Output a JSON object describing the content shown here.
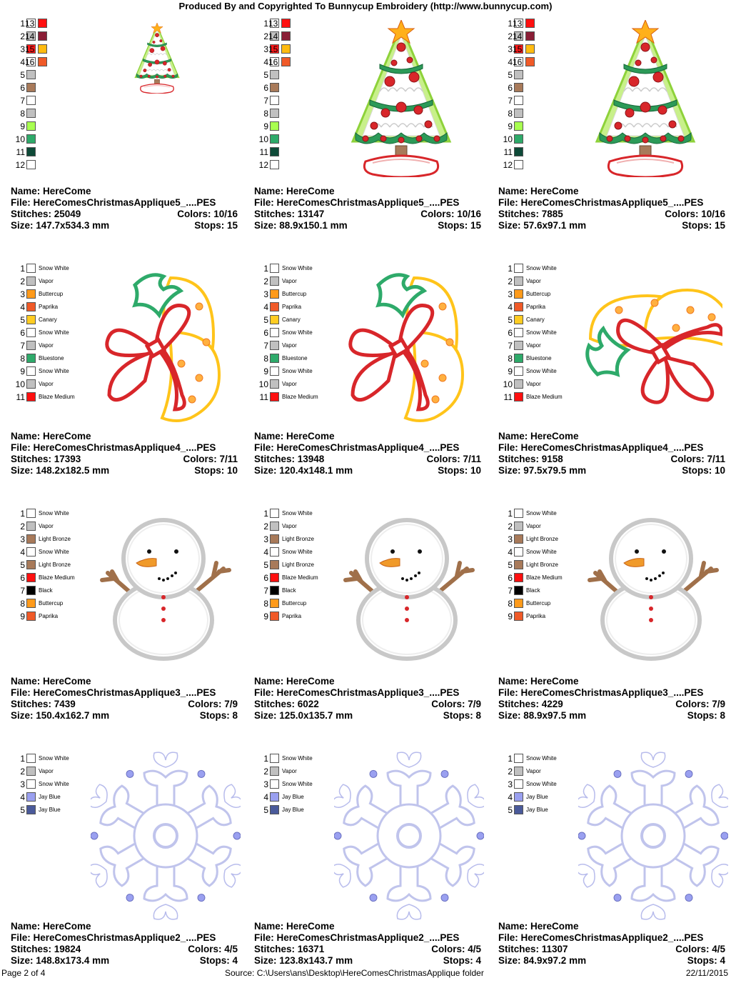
{
  "header": "Produced By and Copyrighted To Bunnycup Embroidery (http://www.bunnycup.com)",
  "footer": {
    "page": "Page 2 of 4",
    "source": "Source: C:\\Users\\ans\\Desktop\\HereComesChristmasApplique folder",
    "date": "22/11/2015"
  },
  "rows": [
    {
      "artwork": "christmas-tree",
      "swatch_style": "numbered-two-column",
      "swatches": [
        {
          "n": "1",
          "color": "#ffffff"
        },
        {
          "n": "2",
          "color": "#c0c0c0"
        },
        {
          "n": "3",
          "color": "#ff1a1a"
        },
        {
          "n": "4",
          "color": "#ffffff"
        },
        {
          "n": "5",
          "color": "#c0c0c0"
        },
        {
          "n": "6",
          "color": "#a87a5a"
        },
        {
          "n": "7",
          "color": "#ffffff"
        },
        {
          "n": "8",
          "color": "#c0c0c0"
        },
        {
          "n": "9",
          "color": "#a8ff50"
        },
        {
          "n": "10",
          "color": "#2eaa6a"
        },
        {
          "n": "11",
          "color": "#0e4a38"
        },
        {
          "n": "12",
          "color": "#ffffff"
        },
        {
          "n": "13",
          "color": "#ff1010"
        },
        {
          "n": "14",
          "color": "#8a1e36"
        },
        {
          "n": "15",
          "color": "#ffbb10"
        },
        {
          "n": "16",
          "color": "#f05a28"
        }
      ],
      "cells": [
        {
          "name": "Name: HereCome",
          "file": "File: HereComesChristmasApplique5_....PES",
          "stitches": "Stitches: 25049",
          "colors": "Colors: 10/16",
          "size": "Size: 147.7x534.3 mm",
          "stops": "Stops: 15",
          "scale": 0.45
        },
        {
          "name": "Name: HereCome",
          "file": "File: HereComesChristmasApplique5_....PES",
          "stitches": "Stitches: 13147",
          "colors": "Colors: 10/16",
          "size": "Size: 88.9x150.1 mm",
          "stops": "Stops: 15",
          "scale": 1
        },
        {
          "name": "Name: HereCome",
          "file": "File: HereComesChristmasApplique5_....PES",
          "stitches": "Stitches: 7885",
          "colors": "Colors: 10/16",
          "size": "Size: 57.6x97.1 mm",
          "stops": "Stops: 15",
          "scale": 1
        }
      ]
    },
    {
      "artwork": "bells",
      "swatch_style": "named",
      "swatches": [
        {
          "n": "1",
          "color": "#ffffff",
          "name": "Snow White"
        },
        {
          "n": "2",
          "color": "#c0c0c0",
          "name": "Vapor"
        },
        {
          "n": "3",
          "color": "#ff9a1a",
          "name": "Buttercup"
        },
        {
          "n": "4",
          "color": "#f05a28",
          "name": "Paprika"
        },
        {
          "n": "5",
          "color": "#ffcc22",
          "name": "Canary"
        },
        {
          "n": "6",
          "color": "#ffffff",
          "name": "Snow White"
        },
        {
          "n": "7",
          "color": "#c0c0c0",
          "name": "Vapor"
        },
        {
          "n": "8",
          "color": "#2eaa6a",
          "name": "Bluestone"
        },
        {
          "n": "9",
          "color": "#ffffff",
          "name": "Snow White"
        },
        {
          "n": "10",
          "color": "#c0c0c0",
          "name": "Vapor"
        },
        {
          "n": "11",
          "color": "#ff1010",
          "name": "Blaze Medium"
        }
      ],
      "cells": [
        {
          "name": "Name: HereCome",
          "file": "File: HereComesChristmasApplique4_....PES",
          "stitches": "Stitches: 17393",
          "colors": "Colors: 7/11",
          "size": "Size: 148.2x182.5 mm",
          "stops": "Stops: 10",
          "variant": "upright"
        },
        {
          "name": "Name: HereCome",
          "file": "File: HereComesChristmasApplique4_....PES",
          "stitches": "Stitches: 13948",
          "colors": "Colors: 7/11",
          "size": "Size: 120.4x148.1 mm",
          "stops": "Stops: 10",
          "variant": "upright"
        },
        {
          "name": "Name: HereCome",
          "file": "File: HereComesChristmasApplique4_....PES",
          "stitches": "Stitches: 9158",
          "colors": "Colors: 7/11",
          "size": "Size: 97.5x79.5 mm",
          "stops": "Stops: 10",
          "variant": "rotated"
        }
      ]
    },
    {
      "artwork": "snowman",
      "swatch_style": "named",
      "swatches": [
        {
          "n": "1",
          "color": "#ffffff",
          "name": "Snow White"
        },
        {
          "n": "2",
          "color": "#c0c0c0",
          "name": "Vapor"
        },
        {
          "n": "3",
          "color": "#a87a5a",
          "name": "Light Bronze"
        },
        {
          "n": "4",
          "color": "#ffffff",
          "name": "Snow White"
        },
        {
          "n": "5",
          "color": "#a87a5a",
          "name": "Light Bronze"
        },
        {
          "n": "6",
          "color": "#ff1010",
          "name": "Blaze Medium"
        },
        {
          "n": "7",
          "color": "#000000",
          "name": "Black"
        },
        {
          "n": "8",
          "color": "#ff9a1a",
          "name": "Buttercup"
        },
        {
          "n": "9",
          "color": "#f05a28",
          "name": "Paprika"
        }
      ],
      "cells": [
        {
          "name": "Name: HereCome",
          "file": "File: HereComesChristmasApplique3_....PES",
          "stitches": "Stitches: 7439",
          "colors": "Colors: 7/9",
          "size": "Size: 150.4x162.7 mm",
          "stops": "Stops: 8"
        },
        {
          "name": "Name: HereCome",
          "file": "File: HereComesChristmasApplique3_....PES",
          "stitches": "Stitches: 6022",
          "colors": "Colors: 7/9",
          "size": "Size: 125.0x135.7 mm",
          "stops": "Stops: 8"
        },
        {
          "name": "Name: HereCome",
          "file": "File: HereComesChristmasApplique3_....PES",
          "stitches": "Stitches: 4229",
          "colors": "Colors: 7/9",
          "size": "Size: 88.9x97.5 mm",
          "stops": "Stops: 8"
        }
      ]
    },
    {
      "artwork": "snowflake",
      "swatch_style": "named",
      "swatches": [
        {
          "n": "1",
          "color": "#ffffff",
          "name": "Snow White"
        },
        {
          "n": "2",
          "color": "#c0c0c0",
          "name": "Vapor"
        },
        {
          "n": "3",
          "color": "#ffffff",
          "name": "Snow White"
        },
        {
          "n": "4",
          "color": "#9aa0f0",
          "name": "Jay Blue"
        },
        {
          "n": "5",
          "color": "#4a5a9a",
          "name": "Jay Blue"
        }
      ],
      "cells": [
        {
          "name": "Name: HereCome",
          "file": "File: HereComesChristmasApplique2_....PES",
          "stitches": "Stitches: 19824",
          "colors": "Colors: 4/5",
          "size": "Size: 148.8x173.4 mm",
          "stops": "Stops: 4"
        },
        {
          "name": "Name: HereCome",
          "file": "File: HereComesChristmasApplique2_....PES",
          "stitches": "Stitches: 16371",
          "colors": "Colors: 4/5",
          "size": "Size: 123.8x143.7 mm",
          "stops": "Stops: 4"
        },
        {
          "name": "Name: HereCome",
          "file": "File: HereComesChristmasApplique2_....PES",
          "stitches": "Stitches: 11307",
          "colors": "Colors: 4/5",
          "size": "Size: 84.9x97.2 mm",
          "stops": "Stops: 4"
        }
      ]
    }
  ]
}
